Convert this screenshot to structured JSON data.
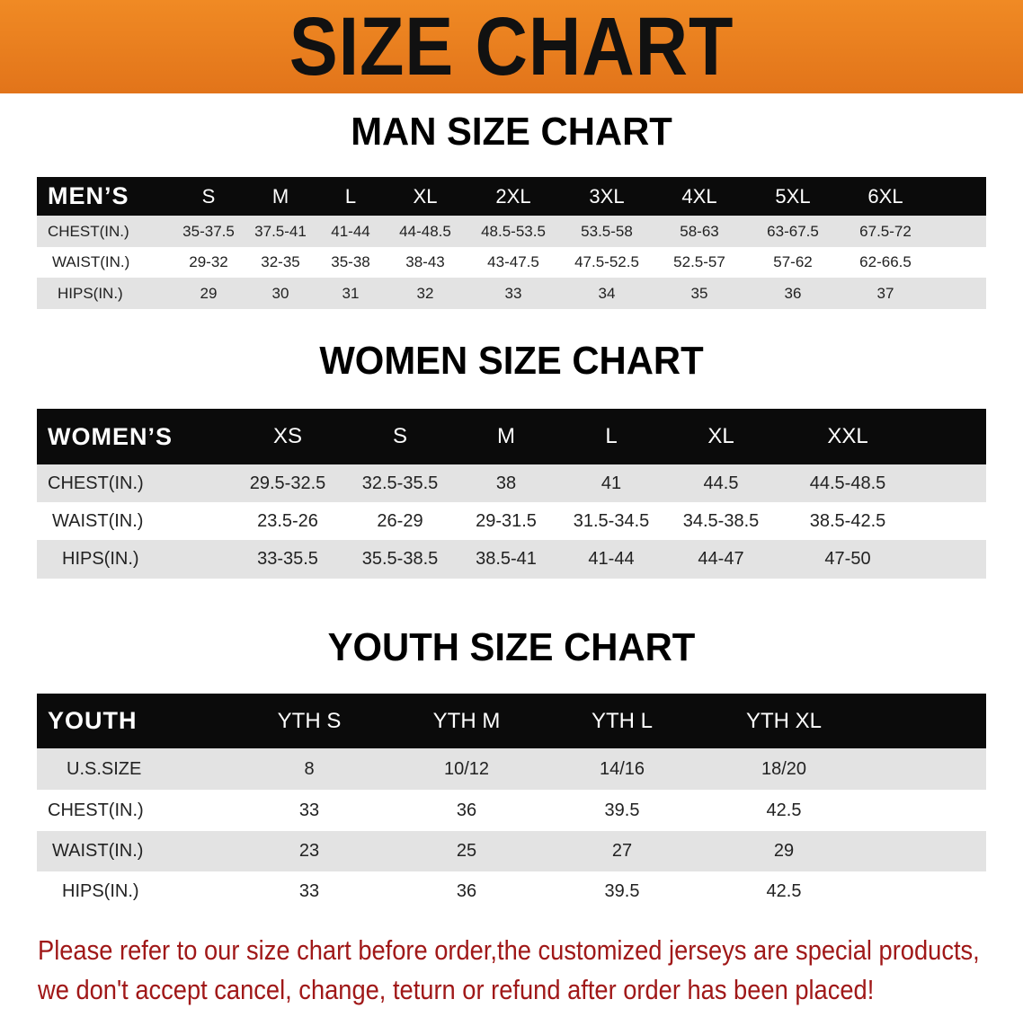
{
  "banner": {
    "title": "SIZE CHART",
    "color": "#e8781a"
  },
  "men": {
    "title": "MAN SIZE CHART",
    "header": [
      "MEN’S",
      "S",
      "M",
      "L",
      "XL",
      "2XL",
      "3XL",
      "4XL",
      "5XL",
      "6XL"
    ],
    "rows": [
      [
        "CHEST(IN.)",
        "35-37.5",
        "37.5-41",
        "41-44",
        "44-48.5",
        "48.5-53.5",
        "53.5-58",
        "58-63",
        "63-67.5",
        "67.5-72"
      ],
      [
        "WAIST(IN.)",
        "29-32",
        "32-35",
        "35-38",
        "38-43",
        "43-47.5",
        "47.5-52.5",
        "52.5-57",
        "57-62",
        "62-66.5"
      ],
      [
        "HIPS(IN.)",
        "29",
        "30",
        "31",
        "32",
        "33",
        "34",
        "35",
        "36",
        "37"
      ]
    ]
  },
  "women": {
    "title": "WOMEN SIZE CHART",
    "header": [
      "WOMEN’S",
      "XS",
      "S",
      "M",
      "L",
      "XL",
      "XXL"
    ],
    "rows": [
      [
        "CHEST(IN.)",
        "29.5-32.5",
        "32.5-35.5",
        "38",
        "41",
        "44.5",
        "44.5-48.5"
      ],
      [
        "WAIST(IN.)",
        "23.5-26",
        "26-29",
        "29-31.5",
        "31.5-34.5",
        "34.5-38.5",
        "38.5-42.5"
      ],
      [
        "HIPS(IN.)",
        "33-35.5",
        "35.5-38.5",
        "38.5-41",
        "41-44",
        "44-47",
        "47-50"
      ]
    ]
  },
  "youth": {
    "title": "YOUTH SIZE CHART",
    "header": [
      "YOUTH",
      "YTH S",
      "YTH M",
      "YTH L",
      "YTH XL"
    ],
    "rows": [
      [
        "U.S.SIZE",
        "8",
        "10/12",
        "14/16",
        "18/20"
      ],
      [
        "CHEST(IN.)",
        "33",
        "36",
        "39.5",
        "42.5"
      ],
      [
        "WAIST(IN.)",
        "23",
        "25",
        "27",
        "29"
      ],
      [
        "HIPS(IN.)",
        "33",
        "36",
        "39.5",
        "42.5"
      ]
    ]
  },
  "note": {
    "line1": "Please refer to our size chart before order,the customized jerseys are special products,",
    "line2": "we don't accept cancel, change, teturn or refund after order has been placed!",
    "color": "#a01818"
  }
}
